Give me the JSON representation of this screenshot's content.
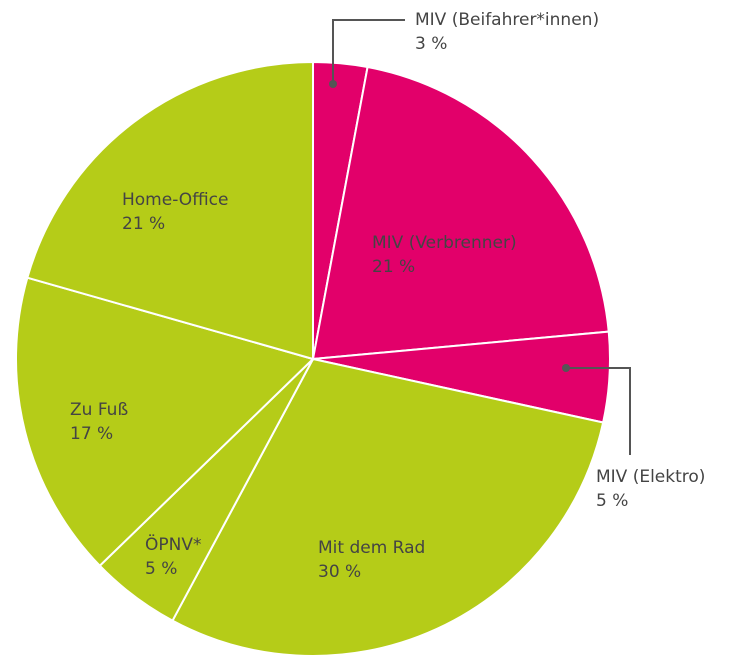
{
  "chart_data": {
    "type": "pie",
    "categories": [
      "MIV (Beifahrer*innen)",
      "MIV (Verbrenner)",
      "MIV (Elektro)",
      "Mit dem Rad",
      "ÖPNV*",
      "Zu Fuß",
      "Home-Office"
    ],
    "values": [
      3,
      21,
      5,
      30,
      5,
      17,
      21
    ],
    "value_labels": [
      "3 %",
      "21 %",
      "5 %",
      "30 %",
      "5 %",
      "17 %",
      "21 %"
    ],
    "colors": [
      "#e2006a",
      "#e2006a",
      "#e2006a",
      "#b5cc18",
      "#b5cc18",
      "#b5cc18",
      "#b5cc18"
    ]
  }
}
